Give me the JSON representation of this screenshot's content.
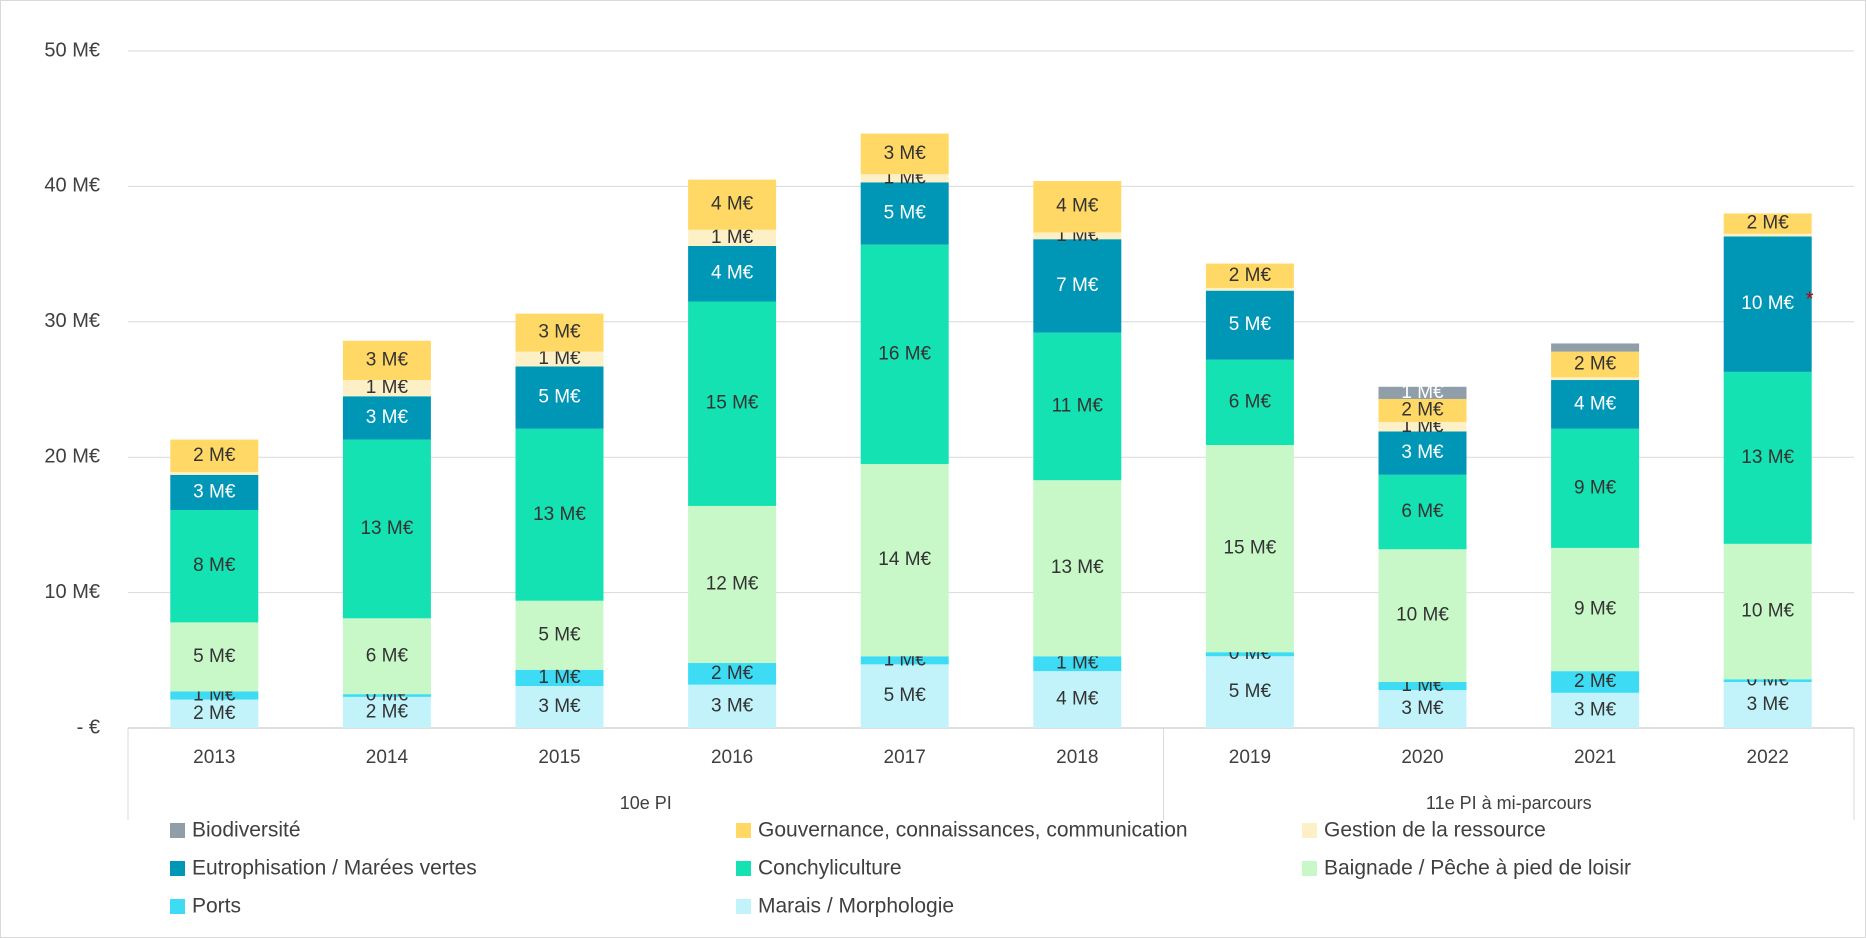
{
  "chart_data": {
    "type": "stacked-bar",
    "groups": [
      {
        "label": "10e PI",
        "categories": [
          "2013",
          "2014",
          "2015",
          "2016",
          "2017",
          "2018"
        ]
      },
      {
        "label": "11e PI à mi-parcours",
        "categories": [
          "2019",
          "2020",
          "2021",
          "2022"
        ]
      }
    ],
    "ylim": [
      0,
      50
    ],
    "yticks": [
      {
        "value": 0,
        "label": "-   €"
      },
      {
        "value": 10,
        "label": "10 M€"
      },
      {
        "value": 20,
        "label": "20 M€"
      },
      {
        "value": 30,
        "label": "30 M€"
      },
      {
        "value": 40,
        "label": "40 M€"
      },
      {
        "value": 50,
        "label": "50 M€"
      }
    ],
    "grid": true,
    "legend": "bottom",
    "series": [
      {
        "name": "Marais / Morphologie",
        "color": "#c2f3fa",
        "label_color": "#333333",
        "values": [
          2.1,
          2.3,
          3.1,
          3.2,
          4.7,
          4.2,
          5.3,
          2.8,
          2.6,
          3.4
        ],
        "value_labels": [
          "2 M€",
          "2 M€",
          "3 M€",
          "3 M€",
          "5 M€",
          "4 M€",
          "5 M€",
          "3 M€",
          "3 M€",
          "3 M€"
        ]
      },
      {
        "name": "Ports",
        "color": "#3ddcf4",
        "label_color": "#333333",
        "values": [
          0.6,
          0.2,
          1.2,
          1.6,
          0.6,
          1.1,
          0.3,
          0.6,
          1.6,
          0.2
        ],
        "value_labels": [
          "1 M€",
          "0 M€",
          "1 M€",
          "2 M€",
          "1 M€",
          "1 M€",
          "0 M€",
          "1 M€",
          "2 M€",
          "0 M€"
        ]
      },
      {
        "name": "Baignade / Pêche à pied de loisir",
        "color": "#c8f8c8",
        "label_color": "#333333",
        "values": [
          5.1,
          5.6,
          5.1,
          11.6,
          14.2,
          13.0,
          15.3,
          9.8,
          9.1,
          10.0
        ],
        "value_labels": [
          "5 M€",
          "6 M€",
          "5 M€",
          "12 M€",
          "14 M€",
          "13 M€",
          "15 M€",
          "10 M€",
          "9 M€",
          "10 M€"
        ]
      },
      {
        "name": "Conchyliculture",
        "color": "#14e2b2",
        "label_color": "#333333",
        "values": [
          8.3,
          13.2,
          12.7,
          15.1,
          16.2,
          10.9,
          6.3,
          5.5,
          8.8,
          12.7
        ],
        "value_labels": [
          "8 M€",
          "13 M€",
          "13 M€",
          "15 M€",
          "16 M€",
          "11 M€",
          "6 M€",
          "6 M€",
          "9 M€",
          "13 M€"
        ]
      },
      {
        "name": "Eutrophisation / Marées vertes",
        "color": "#0097b6",
        "label_color": "#ffffff",
        "values": [
          2.6,
          3.2,
          4.6,
          4.1,
          4.6,
          6.9,
          5.1,
          3.2,
          3.6,
          10.0
        ],
        "value_labels": [
          "3 M€",
          "3 M€",
          "5 M€",
          "4 M€",
          "5 M€",
          "7 M€",
          "5 M€",
          "3 M€",
          "4 M€",
          "10 M€"
        ]
      },
      {
        "name": "Gestion de la ressource",
        "color": "#fdf0c6",
        "label_color": "#333333",
        "values": [
          0.2,
          1.2,
          1.1,
          1.2,
          0.6,
          0.5,
          0.2,
          0.7,
          0.2,
          0.2
        ],
        "value_labels": [
          null,
          "1 M€",
          "1 M€",
          "1 M€",
          "1 M€",
          "1 M€",
          null,
          "1 M€",
          null,
          null
        ]
      },
      {
        "name": "Gouvernance, connaissances, communication",
        "color": "#ffd865",
        "label_color": "#333333",
        "values": [
          2.4,
          2.9,
          2.8,
          3.7,
          3.0,
          3.8,
          1.8,
          1.7,
          1.9,
          1.5
        ],
        "value_labels": [
          "2 M€",
          "3 M€",
          "3 M€",
          "4 M€",
          "3 M€",
          "4 M€",
          "2 M€",
          "2 M€",
          "2 M€",
          "2 M€"
        ]
      },
      {
        "name": "Biodiversité",
        "color": "#8f9ea8",
        "label_color": "#ffffff",
        "values": [
          0,
          0,
          0,
          0,
          0,
          0,
          0,
          0.9,
          0.6,
          0
        ],
        "value_labels": [
          null,
          null,
          null,
          null,
          null,
          null,
          null,
          "1 M€",
          null,
          null
        ]
      }
    ],
    "annotations": [
      {
        "text": "*",
        "color": "#c00000"
      }
    ]
  }
}
